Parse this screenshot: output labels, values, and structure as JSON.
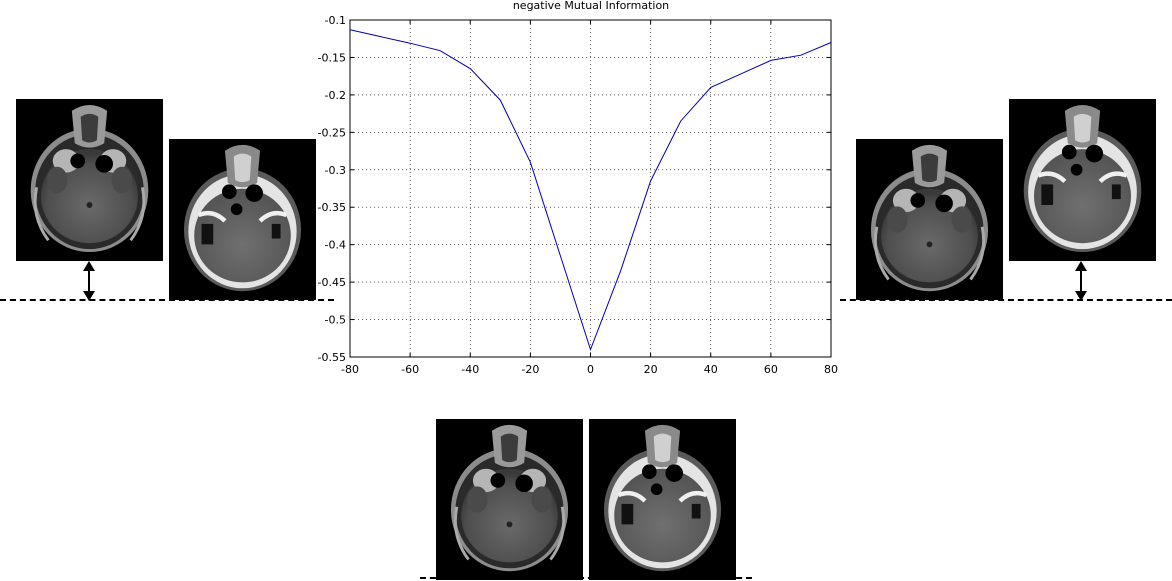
{
  "chart_data": {
    "type": "line",
    "title": "negative Mutual Information",
    "xlabel": "",
    "ylabel": "",
    "xlim": [
      -80,
      80
    ],
    "ylim": [
      -0.55,
      -0.1
    ],
    "x_ticks": [
      -80,
      -60,
      -40,
      -20,
      0,
      20,
      40,
      60,
      80
    ],
    "y_ticks": [
      -0.1,
      -0.15,
      -0.2,
      -0.25,
      -0.3,
      -0.35,
      -0.4,
      -0.45,
      -0.5,
      -0.55
    ],
    "x_tick_labels": [
      "-80",
      "-60",
      "-40",
      "-20",
      "0",
      "20",
      "40",
      "60",
      "80"
    ],
    "y_tick_labels": [
      "-0.1",
      "-0.15",
      "-0.2",
      "-0.25",
      "-0.3",
      "-0.35",
      "-0.4",
      "-0.45",
      "-0.5",
      "-0.55"
    ],
    "grid": true,
    "line_color": "#0000aa",
    "series": [
      {
        "x": [
          -80,
          -70,
          -60,
          -50,
          -40,
          -30,
          -20,
          -10,
          0,
          10,
          20,
          30,
          40,
          50,
          60,
          70,
          80
        ],
        "values": [
          -0.113,
          -0.122,
          -0.131,
          -0.141,
          -0.165,
          -0.207,
          -0.29,
          -0.415,
          -0.54,
          -0.435,
          -0.315,
          -0.235,
          -0.19,
          -0.172,
          -0.154,
          -0.147,
          -0.13
        ]
      }
    ]
  },
  "images": {
    "colors": {
      "mri_tissue": "#5a5a5a",
      "ct_tissue": "#606060",
      "bone": "#e6e6e6"
    },
    "icons": [
      "mri-scan-left",
      "ct-scan-left",
      "mri-scan-right",
      "ct-scan-right",
      "mri-scan-center",
      "ct-scan-center",
      "double-arrow-icon"
    ]
  }
}
